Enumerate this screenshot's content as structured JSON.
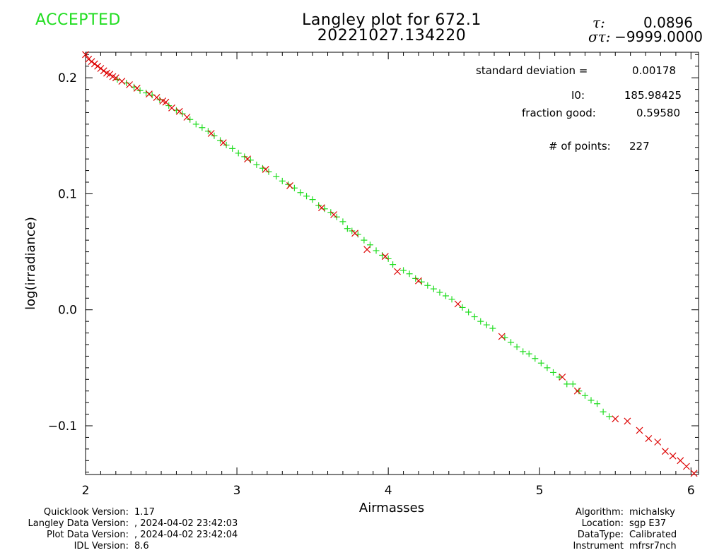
{
  "status": "ACCEPTED",
  "title": {
    "line1": "Langley plot for 672.1",
    "line2": "20221027.134220"
  },
  "header_stats": {
    "tau_label": "τ:",
    "tau_value": "0.0896",
    "sigma_label": "στ:",
    "sigma_value": "−9999.0000"
  },
  "stats": {
    "std_label": "standard deviation  =",
    "std_value": "0.00178",
    "i0_label": "I0:",
    "i0_value": "185.98425",
    "fraction_label": "fraction good:",
    "fraction_value": "0.59580",
    "points_label": "# of points:",
    "points_value": "227"
  },
  "footer_left": [
    {
      "label": "Quicklook Version:",
      "value": "1.17"
    },
    {
      "label": "Langley Data Version:",
      "value": ", 2024-04-02 23:42:03"
    },
    {
      "label": "Plot Data Version:",
      "value": ", 2024-04-02 23:42:04"
    },
    {
      "label": "IDL Version:",
      "value": "8.6"
    }
  ],
  "footer_right": [
    {
      "label": "Algorithm:",
      "value": "michalsky"
    },
    {
      "label": "Location:",
      "value": "sgp E37"
    },
    {
      "label": "DataType:",
      "value": "Calibrated"
    },
    {
      "label": "Instrument",
      "value": "mfrsr7nch"
    }
  ],
  "colors": {
    "good": "#22dd22",
    "rejected": "#dd0000",
    "accepted_text": "#22dd22"
  },
  "chart_data": {
    "type": "scatter",
    "xlabel": "Airmasses",
    "ylabel": "log(irradiance)",
    "xlim": [
      2,
      6.05
    ],
    "ylim": [
      -0.142,
      0.222
    ],
    "x_ticks": [
      2,
      3,
      4,
      5,
      6
    ],
    "y_ticks": [
      -0.1,
      0.0,
      0.1,
      0.2
    ],
    "x_tick_labels": [
      "2",
      "3",
      "4",
      "5",
      "6"
    ],
    "y_tick_labels": [
      "−0.1",
      "0.0",
      "0.1",
      "0.2"
    ],
    "fit": {
      "intercept": 0.3962,
      "slope": -0.0896
    },
    "series": [
      {
        "name": "good",
        "marker": "plus",
        "color": "#22dd22",
        "points": [
          [
            2.21,
            0.1985
          ],
          [
            2.27,
            0.1955
          ],
          [
            2.32,
            0.192
          ],
          [
            2.36,
            0.189
          ],
          [
            2.4,
            0.187
          ],
          [
            2.44,
            0.185
          ],
          [
            2.49,
            0.181
          ],
          [
            2.55,
            0.176
          ],
          [
            2.6,
            0.172
          ],
          [
            2.64,
            0.169
          ],
          [
            2.69,
            0.164
          ],
          [
            2.73,
            0.16
          ],
          [
            2.77,
            0.157
          ],
          [
            2.81,
            0.154
          ],
          [
            2.85,
            0.15
          ],
          [
            2.89,
            0.146
          ],
          [
            2.93,
            0.142
          ],
          [
            2.97,
            0.139
          ],
          [
            3.01,
            0.135
          ],
          [
            3.05,
            0.132
          ],
          [
            3.09,
            0.129
          ],
          [
            3.13,
            0.125
          ],
          [
            3.17,
            0.122
          ],
          [
            3.21,
            0.119
          ],
          [
            3.26,
            0.115
          ],
          [
            3.3,
            0.111
          ],
          [
            3.34,
            0.108
          ],
          [
            3.38,
            0.105
          ],
          [
            3.42,
            0.101
          ],
          [
            3.46,
            0.098
          ],
          [
            3.5,
            0.095
          ],
          [
            3.54,
            0.09
          ],
          [
            3.58,
            0.087
          ],
          [
            3.62,
            0.084
          ],
          [
            3.66,
            0.08
          ],
          [
            3.7,
            0.076
          ],
          [
            3.73,
            0.07
          ],
          [
            3.76,
            0.068
          ],
          [
            3.8,
            0.065
          ],
          [
            3.84,
            0.06
          ],
          [
            3.88,
            0.056
          ],
          [
            3.92,
            0.051
          ],
          [
            3.96,
            0.047
          ],
          [
            4.0,
            0.044
          ],
          [
            4.03,
            0.039
          ],
          [
            4.1,
            0.034
          ],
          [
            4.14,
            0.031
          ],
          [
            4.18,
            0.027
          ],
          [
            4.22,
            0.024
          ],
          [
            4.26,
            0.021
          ],
          [
            4.3,
            0.018
          ],
          [
            4.34,
            0.015
          ],
          [
            4.38,
            0.012
          ],
          [
            4.42,
            0.009
          ],
          [
            4.49,
            0.002
          ],
          [
            4.53,
            -0.002
          ],
          [
            4.57,
            -0.006
          ],
          [
            4.61,
            -0.01
          ],
          [
            4.65,
            -0.013
          ],
          [
            4.69,
            -0.016
          ],
          [
            4.77,
            -0.024
          ],
          [
            4.81,
            -0.028
          ],
          [
            4.85,
            -0.032
          ],
          [
            4.89,
            -0.036
          ],
          [
            4.93,
            -0.038
          ],
          [
            4.97,
            -0.042
          ],
          [
            5.01,
            -0.046
          ],
          [
            5.05,
            -0.05
          ],
          [
            5.09,
            -0.054
          ],
          [
            5.13,
            -0.058
          ],
          [
            5.18,
            -0.064
          ],
          [
            5.22,
            -0.064
          ],
          [
            5.26,
            -0.07
          ],
          [
            5.3,
            -0.074
          ],
          [
            5.34,
            -0.078
          ],
          [
            5.38,
            -0.081
          ],
          [
            5.42,
            -0.088
          ],
          [
            5.46,
            -0.092
          ]
        ]
      },
      {
        "name": "rejected",
        "marker": "cross",
        "color": "#dd0000",
        "points": [
          [
            2.0,
            0.22
          ],
          [
            2.02,
            0.216
          ],
          [
            2.04,
            0.214
          ],
          [
            2.06,
            0.212
          ],
          [
            2.08,
            0.21
          ],
          [
            2.1,
            0.208
          ],
          [
            2.12,
            0.206
          ],
          [
            2.14,
            0.204
          ],
          [
            2.16,
            0.203
          ],
          [
            2.18,
            0.201
          ],
          [
            2.2,
            0.2
          ],
          [
            2.24,
            0.197
          ],
          [
            2.29,
            0.194
          ],
          [
            2.34,
            0.191
          ],
          [
            2.42,
            0.186
          ],
          [
            2.47,
            0.183
          ],
          [
            2.51,
            0.18
          ],
          [
            2.53,
            0.179
          ],
          [
            2.57,
            0.174
          ],
          [
            2.62,
            0.171
          ],
          [
            2.67,
            0.166
          ],
          [
            2.83,
            0.152
          ],
          [
            2.91,
            0.144
          ],
          [
            3.07,
            0.13
          ],
          [
            3.19,
            0.121
          ],
          [
            3.35,
            0.107
          ],
          [
            3.56,
            0.088
          ],
          [
            3.64,
            0.082
          ],
          [
            3.78,
            0.066
          ],
          [
            3.86,
            0.052
          ],
          [
            3.98,
            0.046
          ],
          [
            4.06,
            0.033
          ],
          [
            4.2,
            0.025
          ],
          [
            4.46,
            0.005
          ],
          [
            4.75,
            -0.023
          ],
          [
            5.15,
            -0.058
          ],
          [
            5.25,
            -0.07
          ],
          [
            5.5,
            -0.094
          ],
          [
            5.58,
            -0.096
          ],
          [
            5.66,
            -0.104
          ],
          [
            5.72,
            -0.111
          ],
          [
            5.78,
            -0.114
          ],
          [
            5.83,
            -0.122
          ],
          [
            5.88,
            -0.126
          ],
          [
            5.93,
            -0.13
          ],
          [
            5.97,
            -0.135
          ],
          [
            6.02,
            -0.141
          ]
        ]
      }
    ]
  }
}
